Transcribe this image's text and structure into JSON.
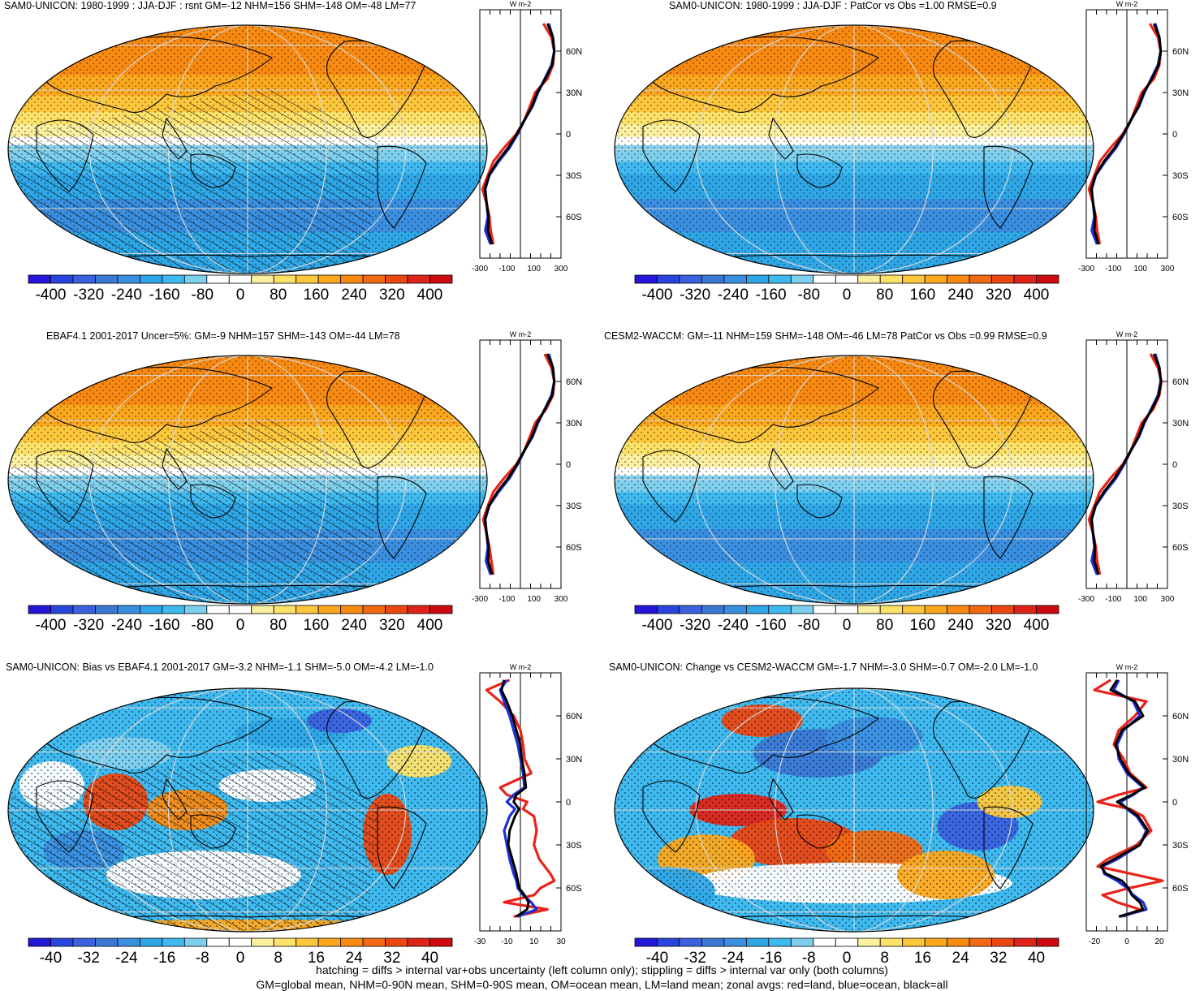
{
  "colors": {
    "scale": [
      "#2316d9",
      "#2a45dd",
      "#3a62df",
      "#3b78d4",
      "#3b8fe0",
      "#2fa6e6",
      "#3fbaf0",
      "#7fd0ee",
      "#ffffff",
      "#ffffff",
      "#fbf0a0",
      "#fde26a",
      "#fcc73c",
      "#fba81e",
      "#f88a12",
      "#f16a12",
      "#ea4712",
      "#e02318",
      "#cc0a10"
    ],
    "land": "#e8231a",
    "ocean": "#1f2fd6",
    "all": "#000000",
    "grid": "#d9d9d9",
    "coast": "#000000"
  },
  "footer": {
    "line1": "hatching = diffs > internal var+obs uncertainty (left column only); stippling = diffs > internal var only (both columns)",
    "line2": "GM=global mean, NHM=0-90N mean, SHM=0-90S mean, OM=ocean mean, LM=land mean; zonal avgs: red=land, blue=ocean, black=all"
  },
  "chart_data": [
    {
      "type": "heatmap",
      "title": "SAM0-UNICON: 1980-1999 : JJA-DJF : rsnt GM=-12 NHM=156 SHM=-148 OM=-48 LM=77",
      "colorbar_labels": [
        "-400",
        "-320",
        "-240",
        "-160",
        "-80",
        "0",
        "80",
        "160",
        "240",
        "320",
        "400"
      ],
      "zonal": {
        "unit_label": "W m-2",
        "xticks": [
          "-300",
          "-100",
          "100",
          "300"
        ],
        "xlim": [
          -300,
          300
        ],
        "lat_labels": [
          "60N",
          "30N",
          "0",
          "30S",
          "60S"
        ],
        "lat_values": [
          60,
          30,
          0,
          -30,
          -60
        ],
        "lat": [
          80,
          70,
          60,
          50,
          40,
          30,
          20,
          10,
          0,
          -10,
          -20,
          -30,
          -40,
          -50,
          -60,
          -70,
          -80
        ],
        "land": [
          170,
          230,
          250,
          240,
          200,
          110,
          70,
          30,
          -30,
          -120,
          -200,
          -240,
          -280,
          -250,
          -230,
          -220,
          -200
        ],
        "ocean": [
          210,
          240,
          250,
          230,
          180,
          130,
          90,
          30,
          -20,
          -80,
          -160,
          -230,
          -260,
          -250,
          -240,
          -260,
          -220
        ],
        "all": [
          200,
          240,
          250,
          235,
          185,
          125,
          85,
          30,
          -25,
          -90,
          -170,
          -232,
          -262,
          -250,
          -235,
          -240,
          -210
        ]
      }
    },
    {
      "type": "heatmap",
      "title": "SAM0-UNICON: 1980-1999 : JJA-DJF : PatCor vs Obs =1.00 RMSE=0.9",
      "colorbar_labels": [
        "-400",
        "-320",
        "-240",
        "-160",
        "-80",
        "0",
        "80",
        "160",
        "240",
        "320",
        "400"
      ],
      "zonal": {
        "unit_label": "W m-2",
        "xticks": [
          "-300",
          "-100",
          "100",
          "300"
        ],
        "xlim": [
          -300,
          300
        ],
        "lat_labels": [
          "60N",
          "30N",
          "0",
          "30S",
          "60S"
        ],
        "lat_values": [
          60,
          30,
          0,
          -30,
          -60
        ],
        "lat": [
          80,
          70,
          60,
          50,
          40,
          30,
          20,
          10,
          0,
          -10,
          -20,
          -30,
          -40,
          -50,
          -60,
          -70,
          -80
        ],
        "land": [
          170,
          230,
          250,
          240,
          200,
          110,
          70,
          30,
          -30,
          -120,
          -200,
          -240,
          -280,
          -250,
          -230,
          -220,
          -200
        ],
        "ocean": [
          210,
          240,
          250,
          230,
          180,
          130,
          90,
          30,
          -20,
          -80,
          -160,
          -230,
          -260,
          -250,
          -240,
          -260,
          -220
        ],
        "all": [
          200,
          240,
          250,
          235,
          185,
          125,
          85,
          30,
          -25,
          -90,
          -170,
          -232,
          -262,
          -250,
          -235,
          -240,
          -210
        ]
      }
    },
    {
      "type": "heatmap",
      "title": "EBAF4.1 2001-2017 Uncer=5%: GM=-9 NHM=157 SHM=-143 OM=-44 LM=78",
      "colorbar_labels": [
        "-400",
        "-320",
        "-240",
        "-160",
        "-80",
        "0",
        "80",
        "160",
        "240",
        "320",
        "400"
      ],
      "zonal": {
        "unit_label": "W m-2",
        "xticks": [
          "-300",
          "-100",
          "100",
          "300"
        ],
        "xlim": [
          -300,
          300
        ],
        "lat_labels": [
          "60N",
          "30N",
          "0",
          "30S",
          "60S"
        ],
        "lat_values": [
          60,
          30,
          0,
          -30,
          -60
        ],
        "lat": [
          80,
          70,
          60,
          50,
          40,
          30,
          20,
          10,
          0,
          -10,
          -20,
          -30,
          -40,
          -50,
          -60,
          -70,
          -80
        ],
        "land": [
          180,
          230,
          250,
          240,
          190,
          110,
          70,
          30,
          -30,
          -120,
          -200,
          -240,
          -275,
          -250,
          -230,
          -215,
          -200
        ],
        "ocean": [
          210,
          240,
          250,
          230,
          180,
          130,
          90,
          30,
          -20,
          -80,
          -160,
          -230,
          -260,
          -250,
          -240,
          -255,
          -220
        ],
        "all": [
          200,
          240,
          250,
          235,
          183,
          125,
          85,
          30,
          -25,
          -90,
          -170,
          -232,
          -262,
          -250,
          -235,
          -238,
          -210
        ]
      }
    },
    {
      "type": "heatmap",
      "title": "CESM2-WACCM: GM=-11 NHM=159 SHM=-148 OM=-46 LM=78 PatCor vs Obs =0.99 RMSE=0.9",
      "colorbar_labels": [
        "-400",
        "-320",
        "-240",
        "-160",
        "-80",
        "0",
        "80",
        "160",
        "240",
        "320",
        "400"
      ],
      "zonal": {
        "unit_label": "W m-2",
        "xticks": [
          "-300",
          "-100",
          "100",
          "300"
        ],
        "xlim": [
          -300,
          300
        ],
        "lat_labels": [
          "60N",
          "30N",
          "0",
          "30S",
          "60S"
        ],
        "lat_values": [
          60,
          30,
          0,
          -30,
          -60
        ],
        "lat": [
          80,
          70,
          60,
          50,
          40,
          30,
          20,
          10,
          0,
          -10,
          -20,
          -30,
          -40,
          -50,
          -60,
          -70,
          -80
        ],
        "land": [
          175,
          230,
          255,
          240,
          195,
          110,
          70,
          30,
          -30,
          -120,
          -200,
          -240,
          -280,
          -250,
          -230,
          -220,
          -200
        ],
        "ocean": [
          210,
          240,
          250,
          230,
          180,
          130,
          90,
          30,
          -20,
          -80,
          -160,
          -230,
          -260,
          -250,
          -240,
          -260,
          -220
        ],
        "all": [
          200,
          240,
          252,
          235,
          185,
          125,
          85,
          30,
          -25,
          -90,
          -170,
          -232,
          -262,
          -250,
          -235,
          -240,
          -210
        ]
      }
    },
    {
      "type": "heatmap",
      "title": "SAM0-UNICON: Bias vs EBAF4.1 2001-2017 GM=-3.2 NHM=-1.1 SHM=-5.0 OM=-4.2 LM=-1.0",
      "colorbar_labels": [
        "-40",
        "-32",
        "-24",
        "-16",
        "-8",
        "0",
        "8",
        "16",
        "24",
        "32",
        "40"
      ],
      "zonal": {
        "unit_label": "W m-2",
        "xticks": [
          "-30",
          "-10",
          "10",
          "30"
        ],
        "xlim": [
          -30,
          30
        ],
        "lat_labels": [
          "60N",
          "30N",
          "0",
          "30S",
          "60S"
        ],
        "lat_values": [
          60,
          30,
          0,
          -30,
          -60
        ],
        "lat": [
          85,
          78,
          70,
          60,
          50,
          40,
          30,
          20,
          10,
          5,
          0,
          -5,
          -10,
          -20,
          -30,
          -40,
          -50,
          -55,
          -60,
          -65,
          -70,
          -75,
          -80
        ],
        "land": [
          -8,
          -25,
          -15,
          -5,
          0,
          2,
          3,
          8,
          -15,
          -10,
          5,
          2,
          10,
          12,
          10,
          14,
          22,
          25,
          15,
          10,
          -12,
          20,
          -5
        ],
        "ocean": [
          -10,
          -15,
          -12,
          -8,
          -5,
          -2,
          0,
          2,
          3,
          -5,
          -10,
          -4,
          -8,
          -12,
          -10,
          -8,
          -5,
          -3,
          -2,
          2,
          8,
          12,
          -2
        ],
        "all": [
          -12,
          -14,
          -10,
          -6,
          -3,
          0,
          1,
          3,
          4,
          -3,
          -5,
          -1,
          -4,
          -8,
          -9,
          -6,
          -3,
          -2,
          -1,
          3,
          6,
          5,
          -3
        ]
      }
    },
    {
      "type": "heatmap",
      "title": "SAM0-UNICON: Change vs CESM2-WACCM GM=-1.7 NHM=-3.0 SHM=-0.7 OM=-2.0 LM=-1.0",
      "colorbar_labels": [
        "-40",
        "-32",
        "-24",
        "-16",
        "-8",
        "0",
        "8",
        "16",
        "24",
        "32",
        "40"
      ],
      "zonal": {
        "unit_label": "W m-2",
        "xticks": [
          "-20",
          "0",
          "20"
        ],
        "xlim": [
          -25,
          25
        ],
        "lat_labels": [
          "60N",
          "30N",
          "0",
          "30S",
          "60S"
        ],
        "lat_values": [
          60,
          30,
          0,
          -30,
          -60
        ],
        "lat": [
          85,
          78,
          70,
          60,
          50,
          40,
          30,
          20,
          10,
          5,
          0,
          -5,
          -10,
          -20,
          -30,
          -40,
          -45,
          -50,
          -55,
          -60,
          -65,
          -70,
          -75,
          -80
        ],
        "land": [
          -10,
          -20,
          12,
          5,
          -5,
          -8,
          -2,
          2,
          12,
          -5,
          -18,
          2,
          10,
          15,
          6,
          -12,
          -18,
          2,
          22,
          2,
          -15,
          -6,
          8,
          -2
        ],
        "ocean": [
          -5,
          -8,
          4,
          8,
          -2,
          -6,
          -5,
          0,
          10,
          4,
          -4,
          0,
          6,
          12,
          8,
          -6,
          -15,
          -14,
          -6,
          0,
          4,
          10,
          12,
          -4
        ],
        "all": [
          -6,
          -10,
          5,
          10,
          -3,
          -7,
          -4,
          1,
          11,
          3,
          -6,
          1,
          7,
          13,
          8,
          -8,
          -16,
          -13,
          -3,
          1,
          3,
          8,
          10,
          -5
        ]
      }
    }
  ]
}
